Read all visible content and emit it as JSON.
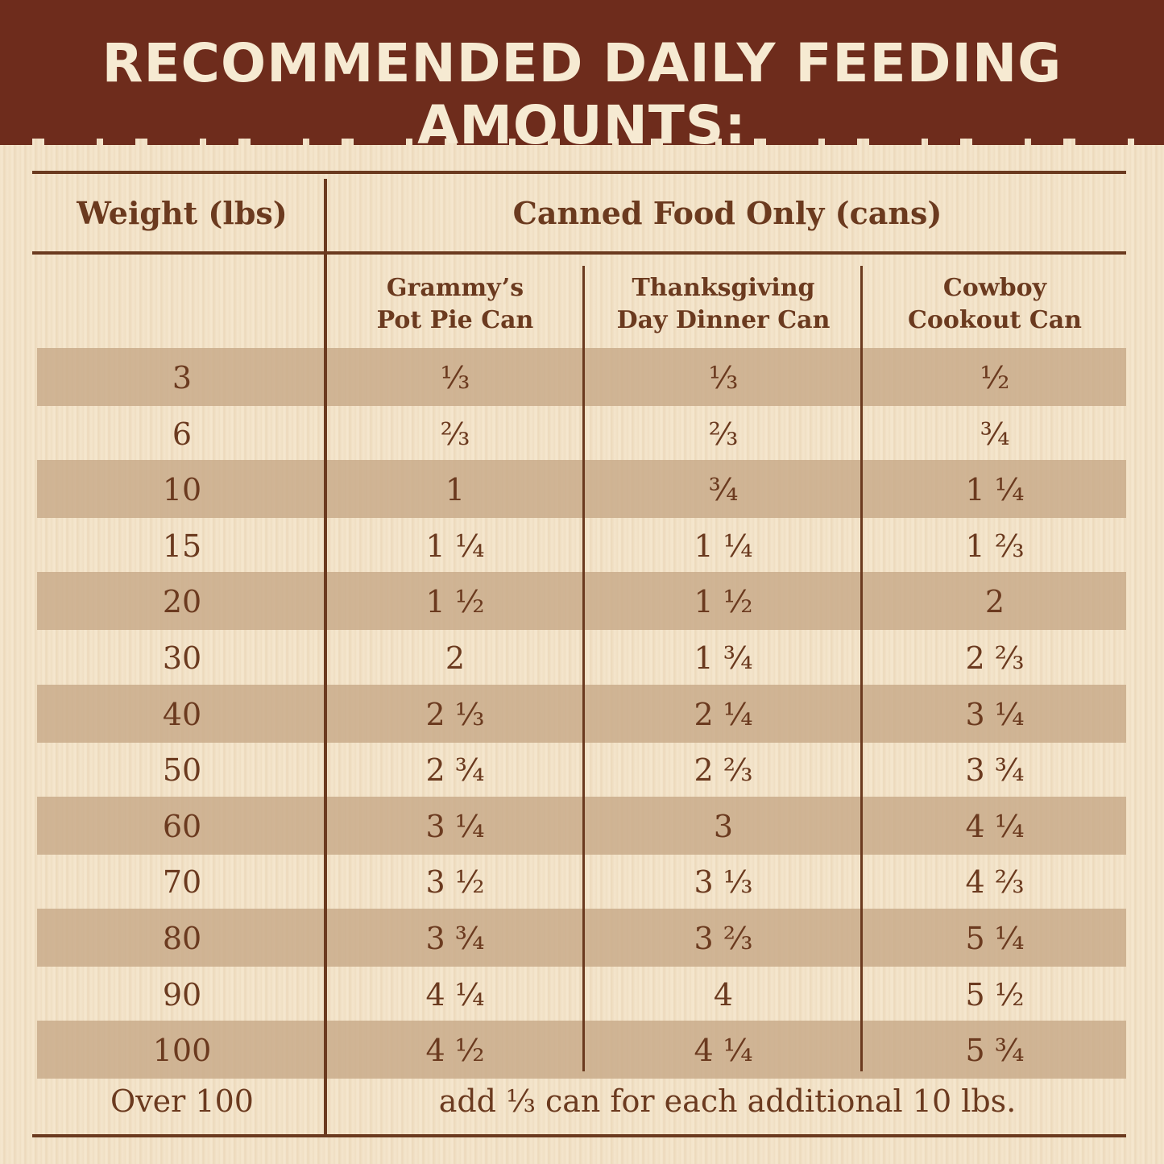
{
  "title": "RECOMMENDED DAILY FEEDING AMOUNTS:",
  "header": {
    "weight": "Weight (lbs)",
    "canned": "Canned Food Only (cans)"
  },
  "columns": [
    "Grammy’s\nPot Pie Can",
    "Thanksgiving\nDay Dinner Can",
    "Cowboy\nCookout Can"
  ],
  "rows": [
    {
      "weight": "3",
      "v1": "⅓",
      "v2": "⅓",
      "v3": "½"
    },
    {
      "weight": "6",
      "v1": "⅔",
      "v2": "⅔",
      "v3": "¾"
    },
    {
      "weight": "10",
      "v1": "1",
      "v2": "¾",
      "v3": "1 ¼"
    },
    {
      "weight": "15",
      "v1": "1 ¼",
      "v2": "1 ¼",
      "v3": "1 ⅔"
    },
    {
      "weight": "20",
      "v1": "1 ½",
      "v2": "1 ½",
      "v3": "2"
    },
    {
      "weight": "30",
      "v1": "2",
      "v2": "1 ¾",
      "v3": "2 ⅔"
    },
    {
      "weight": "40",
      "v1": "2 ⅓",
      "v2": "2 ¼",
      "v3": "3 ¼"
    },
    {
      "weight": "50",
      "v1": "2 ¾",
      "v2": "2 ⅔",
      "v3": "3 ¾"
    },
    {
      "weight": "60",
      "v1": "3 ¼",
      "v2": "3",
      "v3": "4 ¼"
    },
    {
      "weight": "70",
      "v1": "3 ½",
      "v2": "3 ⅓",
      "v3": "4 ⅔"
    },
    {
      "weight": "80",
      "v1": "3 ¾",
      "v2": "3 ⅔",
      "v3": "5 ¼"
    },
    {
      "weight": "90",
      "v1": "4 ¼",
      "v2": "4",
      "v3": "5 ½"
    },
    {
      "weight": "100",
      "v1": "4 ½",
      "v2": "4 ¼",
      "v3": "5 ¾"
    }
  ],
  "footer": {
    "weight": "Over 100",
    "note": "add ⅓ can for each additional 10 lbs."
  }
}
